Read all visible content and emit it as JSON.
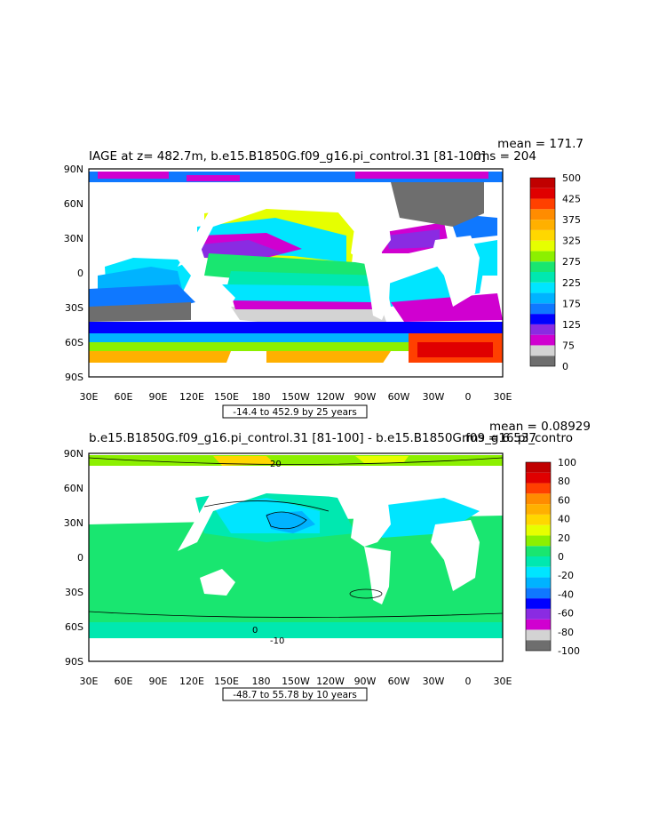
{
  "panels": [
    {
      "title": "IAGE at z= 482.7m, b.e15.B1850G.f09_g16.pi_control.31 [81-100]",
      "stats": {
        "mean": "mean = 171.7",
        "rms": "rms = 204"
      },
      "range_label": "-14.4 to 452.9 by 25 years",
      "colorbar": {
        "labels": [
          "500",
          "425",
          "375",
          "325",
          "275",
          "225",
          "175",
          "125",
          "75",
          "0"
        ],
        "colors": [
          "#6e6e6e",
          "#d3d3d3",
          "#d000d0",
          "#8a2be2",
          "#0000ff",
          "#0f78ff",
          "#00b3ff",
          "#00e5ff",
          "#00e8b0",
          "#19e670",
          "#8cf000",
          "#e6ff00",
          "#ffd700",
          "#ffb000",
          "#ff8c00",
          "#ff4000",
          "#e00000",
          "#c00000"
        ]
      }
    },
    {
      "title": "b.e15.B1850G.f09_g16.pi_control.31 [81-100] - b.e15.B1850G.f09_g16.pi_contro",
      "stats": {
        "mean": "mean = 0.08929",
        "rms": "rms = 6.537"
      },
      "range_label": "-48.7 to 55.78 by 10 years",
      "colorbar": {
        "labels": [
          "100",
          "80",
          "60",
          "40",
          "20",
          "0",
          "-20",
          "-40",
          "-60",
          "-80",
          "-100"
        ],
        "colors": [
          "#6e6e6e",
          "#d3d3d3",
          "#d000d0",
          "#8a2be2",
          "#0000ff",
          "#0f78ff",
          "#00b3ff",
          "#00e5ff",
          "#00e8b0",
          "#19e670",
          "#8cf000",
          "#e6ff00",
          "#ffd700",
          "#ffb000",
          "#ff8c00",
          "#ff4000",
          "#e00000",
          "#c00000"
        ]
      },
      "contour_labels": [
        "20",
        "0",
        "-10"
      ]
    }
  ],
  "axes": {
    "lat_labels": [
      "90N",
      "60N",
      "30N",
      "0",
      "30S",
      "60S",
      "90S"
    ],
    "lon_labels": [
      "30E",
      "60E",
      "90E",
      "120E",
      "150E",
      "180",
      "150W",
      "120W",
      "90W",
      "60W",
      "30W",
      "0",
      "30E"
    ]
  }
}
